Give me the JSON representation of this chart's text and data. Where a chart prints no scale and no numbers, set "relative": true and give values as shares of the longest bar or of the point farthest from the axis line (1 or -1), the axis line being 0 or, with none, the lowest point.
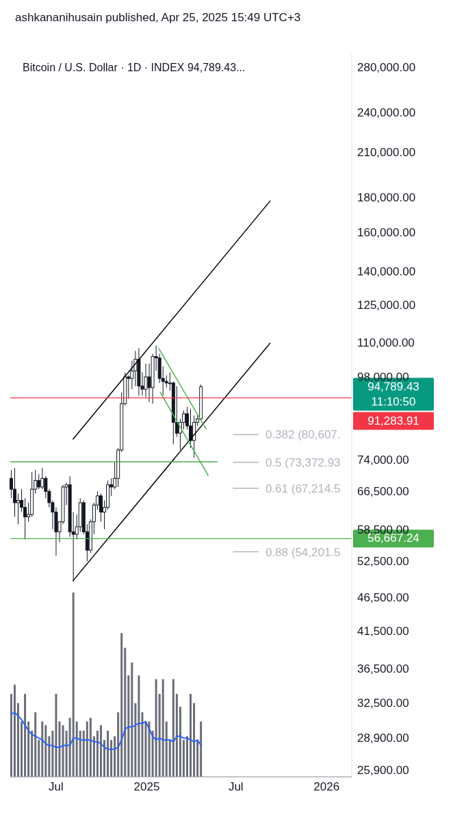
{
  "chart_data": [
    {
      "type": "candlestick",
      "title": "Bitcoin / U.S. Dollar · 1D · INDEX  94,789.43...",
      "subtitle": "ashkananihusain published, Apr 25, 2025 15:49 UTC+3",
      "x": [
        "2024-04-01",
        "2024-04-08",
        "2024-04-15",
        "2024-04-22",
        "2024-04-29",
        "2024-05-06",
        "2024-05-13",
        "2024-05-20",
        "2024-05-27",
        "2024-06-03",
        "2024-06-10",
        "2024-06-17",
        "2024-06-24",
        "2024-07-01",
        "2024-07-08",
        "2024-07-15",
        "2024-07-22",
        "2024-07-29",
        "2024-08-05",
        "2024-08-12",
        "2024-08-19",
        "2024-08-26",
        "2024-09-02",
        "2024-09-09",
        "2024-09-16",
        "2024-09-23",
        "2024-09-30",
        "2024-10-07",
        "2024-10-14",
        "2024-10-21",
        "2024-10-28",
        "2024-11-04",
        "2024-11-11",
        "2024-11-18",
        "2024-11-25",
        "2024-12-02",
        "2024-12-09",
        "2024-12-16",
        "2024-12-23",
        "2024-12-30",
        "2025-01-06",
        "2025-01-13",
        "2025-01-20",
        "2025-01-27",
        "2025-02-03",
        "2025-02-10",
        "2025-02-17",
        "2025-02-24",
        "2025-03-03",
        "2025-03-10",
        "2025-03-17",
        "2025-03-24",
        "2025-03-31",
        "2025-04-07",
        "2025-04-14",
        "2025-04-21"
      ],
      "ohlc": [
        [
          69500,
          71500,
          65000,
          67000
        ],
        [
          67000,
          72000,
          61000,
          64000
        ],
        [
          64000,
          66000,
          59500,
          64500
        ],
        [
          64500,
          67000,
          62000,
          63000
        ],
        [
          63000,
          65000,
          56500,
          61000
        ],
        [
          61000,
          64000,
          60000,
          61500
        ],
        [
          61500,
          71000,
          61000,
          67000
        ],
        [
          67000,
          71500,
          66000,
          69000
        ],
        [
          69000,
          70500,
          67000,
          67500
        ],
        [
          67500,
          72000,
          67000,
          69500
        ],
        [
          69500,
          70000,
          65000,
          66500
        ],
        [
          66500,
          67000,
          63000,
          64000
        ],
        [
          64000,
          64500,
          58500,
          62000
        ],
        [
          62000,
          63000,
          53500,
          58000
        ],
        [
          58000,
          60000,
          56000,
          60000
        ],
        [
          60000,
          68000,
          59500,
          67500
        ],
        [
          67500,
          68500,
          63500,
          68000
        ],
        [
          68000,
          70000,
          57000,
          58000
        ],
        [
          58000,
          62000,
          49000,
          57500
        ],
        [
          57500,
          61500,
          56500,
          59000
        ],
        [
          59000,
          65000,
          58000,
          64000
        ],
        [
          64000,
          64500,
          57500,
          58000
        ],
        [
          58000,
          59500,
          52500,
          54500
        ],
        [
          54500,
          60500,
          54000,
          60000
        ],
        [
          60000,
          64000,
          57500,
          63500
        ],
        [
          63500,
          66500,
          62500,
          65500
        ],
        [
          65500,
          66000,
          60000,
          62000
        ],
        [
          62000,
          64500,
          58500,
          63000
        ],
        [
          63000,
          69000,
          62500,
          68000
        ],
        [
          68000,
          69500,
          65500,
          67500
        ],
        [
          67500,
          73500,
          67000,
          69500
        ],
        [
          69500,
          77000,
          67500,
          76500
        ],
        [
          76500,
          93000,
          76000,
          89500
        ],
        [
          89500,
          99500,
          89000,
          98000
        ],
        [
          98000,
          98500,
          91000,
          97500
        ],
        [
          97500,
          103500,
          94000,
          100000
        ],
        [
          100000,
          107000,
          95000,
          104000
        ],
        [
          104000,
          108000,
          92000,
          95000
        ],
        [
          95000,
          99500,
          92000,
          94000
        ],
        [
          94000,
          102500,
          91500,
          98000
        ],
        [
          98000,
          102500,
          90000,
          94500
        ],
        [
          94500,
          106000,
          89500,
          105000
        ],
        [
          105000,
          109000,
          100000,
          104500
        ],
        [
          104500,
          106000,
          96000,
          97500
        ],
        [
          97500,
          101500,
          92000,
          96500
        ],
        [
          96500,
          98500,
          94500,
          96000
        ],
        [
          96000,
          99500,
          93500,
          96000
        ],
        [
          96000,
          96500,
          78000,
          84000
        ],
        [
          84000,
          95000,
          80000,
          81000
        ],
        [
          81000,
          85000,
          76500,
          84000
        ],
        [
          84000,
          87500,
          82000,
          86500
        ],
        [
          86500,
          88500,
          82000,
          83000
        ],
        [
          83000,
          88000,
          77000,
          79000
        ],
        [
          79000,
          86000,
          74500,
          84000
        ],
        [
          84000,
          86000,
          83000,
          85000
        ],
        [
          85000,
          95500,
          84500,
          94789.43
        ]
      ],
      "color": "#131722",
      "series": [
        {
          "type": "line",
          "color": "#000000",
          "x": [
            "2024-08-04",
            "2025-09-09"
          ],
          "values": [
            79300,
            178000
          ]
        },
        {
          "type": "line",
          "color": "#000000",
          "x": [
            "2024-08-04",
            "2025-09-09"
          ],
          "values": [
            49100,
            110000
          ]
        },
        {
          "type": "line",
          "color": "#4caf50",
          "x": [
            "2025-01-25",
            "2025-05-02"
          ],
          "values": [
            108000,
            82000
          ]
        },
        {
          "type": "line",
          "color": "#4caf50",
          "x": [
            "2025-01-28",
            "2025-05-06"
          ],
          "values": [
            93100,
            70100
          ]
        },
        {
          "type": "line",
          "color": "#4caf50",
          "x": [
            "2024-03-30",
            "2025-05-25"
          ],
          "values": [
            73500,
            73500
          ]
        },
        {
          "type": "line",
          "name": "0.382 (80,607.",
          "color": "#b2b5be",
          "x": [
            "2025-06-25",
            "2025-08-16"
          ],
          "values": [
            80607,
            80607
          ]
        },
        {
          "type": "line",
          "name": "0.5 (73,372.93",
          "color": "#b2b5be",
          "x": [
            "2025-06-25",
            "2025-08-16"
          ],
          "values": [
            73372.93,
            73372.93
          ]
        },
        {
          "type": "line",
          "name": "0.61 (67,214.5",
          "color": "#b2b5be",
          "x": [
            "2025-06-25",
            "2025-08-16"
          ],
          "values": [
            67214.5,
            67214.5
          ]
        },
        {
          "type": "line",
          "name": "0.88 (54,201.5",
          "color": "#b2b5be",
          "x": [
            "2025-06-25",
            "2025-08-16"
          ],
          "values": [
            54201.5,
            54201.5
          ]
        }
      ],
      "ref_lines": [
        {
          "axis": "y",
          "value": 91283.91,
          "label": "91,283.91",
          "color": "#f23645"
        },
        {
          "axis": "y",
          "value": 56667.24,
          "label": "56,667.24",
          "color": "#4caf50"
        }
      ],
      "annotations": [
        "94,789.43",
        "11:10:50"
      ],
      "marker": "none",
      "log": true,
      "xlim": [
        "2024-03-30",
        "2026-02-21"
      ],
      "xticks": [
        {
          "value": "2024-07-01",
          "label": "Jul"
        },
        {
          "value": "2025-01-01",
          "label": "2025"
        },
        {
          "value": "2025-07-01",
          "label": "Jul"
        },
        {
          "value": "2026-01-01",
          "label": "2026"
        }
      ],
      "ylim": [
        25300,
        293000
      ],
      "yticks": [
        {
          "value": 280000,
          "label": "280,000.00"
        },
        {
          "value": 240000,
          "label": "240,000.00"
        },
        {
          "value": 210000,
          "label": "210,000.00"
        },
        {
          "value": 180000,
          "label": "180,000.00"
        },
        {
          "value": 160000,
          "label": "160,000.00"
        },
        {
          "value": 140000,
          "label": "140,000.00"
        },
        {
          "value": 125000,
          "label": "125,000.00"
        },
        {
          "value": 110000,
          "label": "110,000.00"
        },
        {
          "value": 98000,
          "label": "98,000.00"
        },
        {
          "value": 74000,
          "label": "74,000.00"
        },
        {
          "value": 66500,
          "label": "66,500.00"
        },
        {
          "value": 58500,
          "label": "58,500.00"
        },
        {
          "value": 52500,
          "label": "52,500.00"
        },
        {
          "value": 46500,
          "label": "46,500.00"
        },
        {
          "value": 41500,
          "label": "41,500.00"
        },
        {
          "value": 36500,
          "label": "36,500.00"
        },
        {
          "value": 32500,
          "label": "32,500.00"
        },
        {
          "value": 28900,
          "label": "28,900.00"
        },
        {
          "value": 25900,
          "label": "25,900.00"
        }
      ]
    },
    {
      "type": "bar",
      "relative": true,
      "tick_labels": false,
      "x": [
        "2024-04-01",
        "2024-04-08",
        "2024-04-15",
        "2024-04-22",
        "2024-04-29",
        "2024-05-06",
        "2024-05-13",
        "2024-05-20",
        "2024-05-27",
        "2024-06-03",
        "2024-06-10",
        "2024-06-17",
        "2024-06-24",
        "2024-07-01",
        "2024-07-08",
        "2024-07-15",
        "2024-07-22",
        "2024-07-29",
        "2024-08-05",
        "2024-08-12",
        "2024-08-19",
        "2024-08-26",
        "2024-09-02",
        "2024-09-09",
        "2024-09-16",
        "2024-09-23",
        "2024-09-30",
        "2024-10-07",
        "2024-10-14",
        "2024-10-21",
        "2024-10-28",
        "2024-11-04",
        "2024-11-11",
        "2024-11-18",
        "2024-11-25",
        "2024-12-02",
        "2024-12-09",
        "2024-12-16",
        "2024-12-23",
        "2024-12-30",
        "2025-01-06",
        "2025-01-13",
        "2025-01-20",
        "2025-01-27",
        "2025-02-03",
        "2025-02-10",
        "2025-02-17",
        "2025-02-24",
        "2025-03-03",
        "2025-03-10",
        "2025-03-17",
        "2025-03-24",
        "2025-03-31",
        "2025-04-07",
        "2025-04-14",
        "2025-04-21"
      ],
      "series": [
        {
          "type": "bar",
          "color": "#6a6d78",
          "values": [
            0.45,
            0.5,
            0.4,
            0.3,
            0.45,
            0.3,
            0.25,
            0.35,
            0.2,
            0.3,
            0.28,
            0.22,
            0.25,
            0.45,
            0.3,
            0.28,
            0.25,
            0.32,
            1.0,
            0.3,
            0.25,
            0.25,
            0.3,
            0.32,
            0.22,
            0.25,
            0.28,
            0.2,
            0.25,
            0.2,
            0.22,
            0.35,
            0.78,
            0.7,
            0.55,
            0.62,
            0.4,
            0.55,
            0.35,
            0.3,
            0.3,
            0.25,
            0.53,
            0.45,
            0.53,
            0.3,
            0.2,
            0.53,
            0.45,
            0.38,
            0.2,
            0.22,
            0.45,
            0.4,
            0.2,
            0.3
          ]
        },
        {
          "type": "line",
          "color": "#2962ff",
          "values": [
            0.34,
            0.35,
            0.33,
            0.31,
            0.28,
            0.25,
            0.23,
            0.22,
            0.21,
            0.2,
            0.18,
            0.17,
            0.17,
            0.16,
            0.16,
            0.17,
            0.17,
            0.17,
            0.21,
            0.21,
            0.2,
            0.2,
            0.2,
            0.2,
            0.19,
            0.19,
            0.18,
            0.16,
            0.15,
            0.15,
            0.15,
            0.16,
            0.2,
            0.26,
            0.27,
            0.27,
            0.28,
            0.29,
            0.29,
            0.3,
            0.26,
            0.22,
            0.2,
            0.21,
            0.2,
            0.2,
            0.2,
            0.19,
            0.22,
            0.22,
            0.21,
            0.21,
            0.2,
            0.19,
            0.2,
            0.17
          ]
        }
      ],
      "marker": "none",
      "xlim": [
        "2024-03-30",
        "2026-02-21"
      ]
    }
  ]
}
